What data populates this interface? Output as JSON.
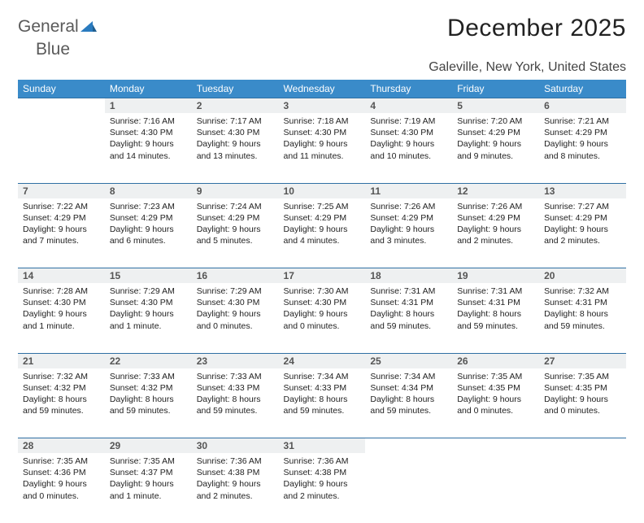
{
  "logo": {
    "text_gray": "General",
    "text_blue": "Blue"
  },
  "title": "December 2025",
  "location": "Galeville, New York, United States",
  "colors": {
    "header_bg": "#3a8bc9",
    "header_text": "#ffffff",
    "daynum_bg": "#eef0f1",
    "row_border": "#2f6fa3",
    "logo_gray": "#5a5a5a",
    "logo_blue": "#2a7bbf"
  },
  "weekdays": [
    "Sunday",
    "Monday",
    "Tuesday",
    "Wednesday",
    "Thursday",
    "Friday",
    "Saturday"
  ],
  "weeks": [
    {
      "nums": [
        "",
        "1",
        "2",
        "3",
        "4",
        "5",
        "6"
      ],
      "cells": [
        null,
        {
          "sunrise": "7:16 AM",
          "sunset": "4:30 PM",
          "daylight": "9 hours and 14 minutes."
        },
        {
          "sunrise": "7:17 AM",
          "sunset": "4:30 PM",
          "daylight": "9 hours and 13 minutes."
        },
        {
          "sunrise": "7:18 AM",
          "sunset": "4:30 PM",
          "daylight": "9 hours and 11 minutes."
        },
        {
          "sunrise": "7:19 AM",
          "sunset": "4:30 PM",
          "daylight": "9 hours and 10 minutes."
        },
        {
          "sunrise": "7:20 AM",
          "sunset": "4:29 PM",
          "daylight": "9 hours and 9 minutes."
        },
        {
          "sunrise": "7:21 AM",
          "sunset": "4:29 PM",
          "daylight": "9 hours and 8 minutes."
        }
      ]
    },
    {
      "nums": [
        "7",
        "8",
        "9",
        "10",
        "11",
        "12",
        "13"
      ],
      "cells": [
        {
          "sunrise": "7:22 AM",
          "sunset": "4:29 PM",
          "daylight": "9 hours and 7 minutes."
        },
        {
          "sunrise": "7:23 AM",
          "sunset": "4:29 PM",
          "daylight": "9 hours and 6 minutes."
        },
        {
          "sunrise": "7:24 AM",
          "sunset": "4:29 PM",
          "daylight": "9 hours and 5 minutes."
        },
        {
          "sunrise": "7:25 AM",
          "sunset": "4:29 PM",
          "daylight": "9 hours and 4 minutes."
        },
        {
          "sunrise": "7:26 AM",
          "sunset": "4:29 PM",
          "daylight": "9 hours and 3 minutes."
        },
        {
          "sunrise": "7:26 AM",
          "sunset": "4:29 PM",
          "daylight": "9 hours and 2 minutes."
        },
        {
          "sunrise": "7:27 AM",
          "sunset": "4:29 PM",
          "daylight": "9 hours and 2 minutes."
        }
      ]
    },
    {
      "nums": [
        "14",
        "15",
        "16",
        "17",
        "18",
        "19",
        "20"
      ],
      "cells": [
        {
          "sunrise": "7:28 AM",
          "sunset": "4:30 PM",
          "daylight": "9 hours and 1 minute."
        },
        {
          "sunrise": "7:29 AM",
          "sunset": "4:30 PM",
          "daylight": "9 hours and 1 minute."
        },
        {
          "sunrise": "7:29 AM",
          "sunset": "4:30 PM",
          "daylight": "9 hours and 0 minutes."
        },
        {
          "sunrise": "7:30 AM",
          "sunset": "4:30 PM",
          "daylight": "9 hours and 0 minutes."
        },
        {
          "sunrise": "7:31 AM",
          "sunset": "4:31 PM",
          "daylight": "8 hours and 59 minutes."
        },
        {
          "sunrise": "7:31 AM",
          "sunset": "4:31 PM",
          "daylight": "8 hours and 59 minutes."
        },
        {
          "sunrise": "7:32 AM",
          "sunset": "4:31 PM",
          "daylight": "8 hours and 59 minutes."
        }
      ]
    },
    {
      "nums": [
        "21",
        "22",
        "23",
        "24",
        "25",
        "26",
        "27"
      ],
      "cells": [
        {
          "sunrise": "7:32 AM",
          "sunset": "4:32 PM",
          "daylight": "8 hours and 59 minutes."
        },
        {
          "sunrise": "7:33 AM",
          "sunset": "4:32 PM",
          "daylight": "8 hours and 59 minutes."
        },
        {
          "sunrise": "7:33 AM",
          "sunset": "4:33 PM",
          "daylight": "8 hours and 59 minutes."
        },
        {
          "sunrise": "7:34 AM",
          "sunset": "4:33 PM",
          "daylight": "8 hours and 59 minutes."
        },
        {
          "sunrise": "7:34 AM",
          "sunset": "4:34 PM",
          "daylight": "8 hours and 59 minutes."
        },
        {
          "sunrise": "7:35 AM",
          "sunset": "4:35 PM",
          "daylight": "9 hours and 0 minutes."
        },
        {
          "sunrise": "7:35 AM",
          "sunset": "4:35 PM",
          "daylight": "9 hours and 0 minutes."
        }
      ]
    },
    {
      "nums": [
        "28",
        "29",
        "30",
        "31",
        "",
        "",
        ""
      ],
      "cells": [
        {
          "sunrise": "7:35 AM",
          "sunset": "4:36 PM",
          "daylight": "9 hours and 0 minutes."
        },
        {
          "sunrise": "7:35 AM",
          "sunset": "4:37 PM",
          "daylight": "9 hours and 1 minute."
        },
        {
          "sunrise": "7:36 AM",
          "sunset": "4:38 PM",
          "daylight": "9 hours and 2 minutes."
        },
        {
          "sunrise": "7:36 AM",
          "sunset": "4:38 PM",
          "daylight": "9 hours and 2 minutes."
        },
        null,
        null,
        null
      ]
    }
  ],
  "labels": {
    "sunrise": "Sunrise:",
    "sunset": "Sunset:",
    "daylight": "Daylight:"
  }
}
